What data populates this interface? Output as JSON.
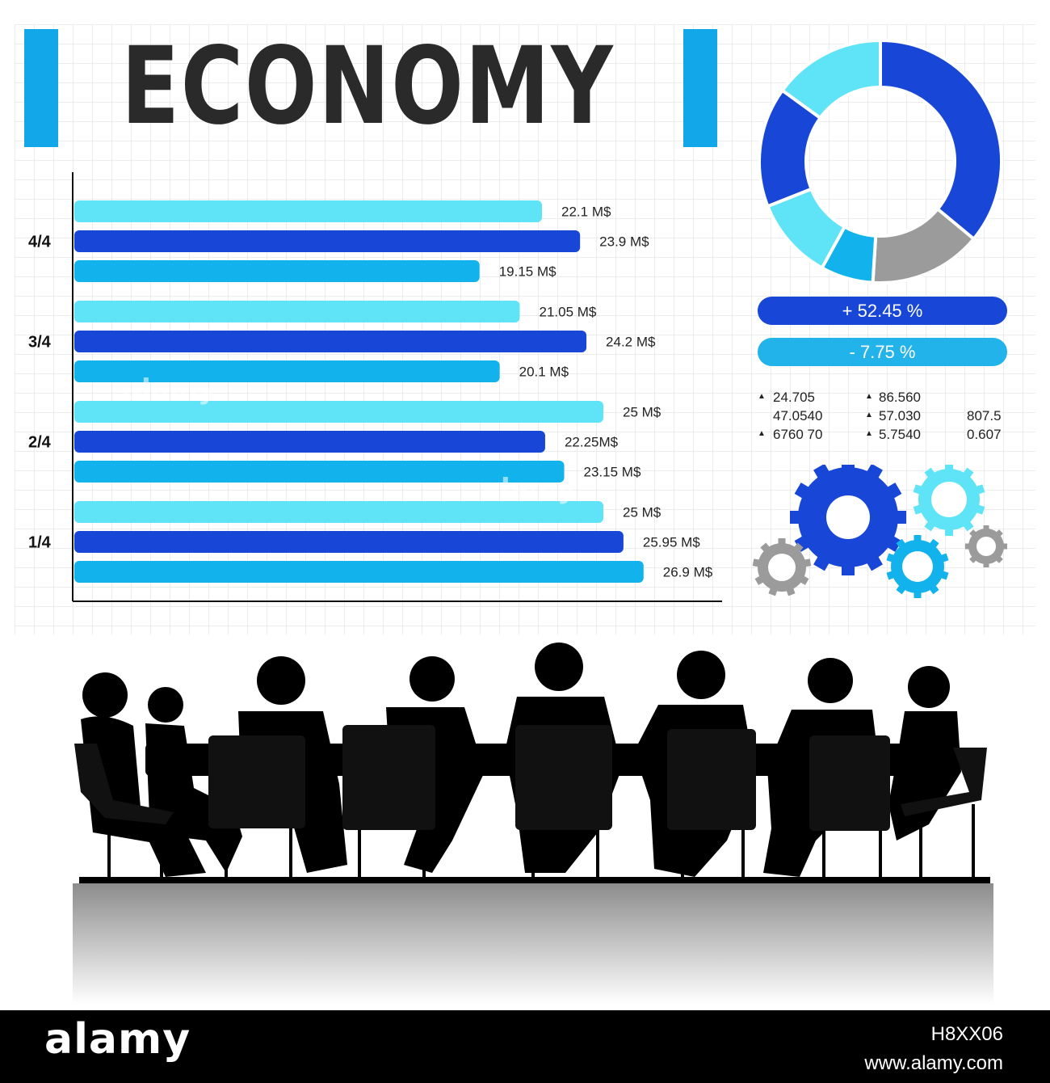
{
  "title": "ECONOMY",
  "colors": {
    "light": "#5fe3f7",
    "dark": "#1846d6",
    "mid": "#12b3ec",
    "gray": "#9b9b9b",
    "accent": "#12a7e8"
  },
  "chart_data": {
    "type": "bar",
    "orientation": "horizontal",
    "categories": [
      "4/4",
      "3/4",
      "2/4",
      "1/4"
    ],
    "unit": "M$",
    "series": [
      {
        "values": [
          22.1,
          21.05,
          25,
          25
        ],
        "labels": [
          "22.1 M$",
          "21.05 M$",
          "25 M$",
          "25 M$"
        ],
        "color": "#5fe3f7"
      },
      {
        "values": [
          23.9,
          24.2,
          22.25,
          25.95
        ],
        "labels": [
          "23.9 M$",
          "24.2 M$",
          "22.25M$",
          "25.95 M$"
        ],
        "color": "#1846d6"
      },
      {
        "values": [
          19.15,
          20.1,
          23.15,
          26.9
        ],
        "labels": [
          "19.15 M$",
          "20.1 M$",
          "23.15 M$",
          "26.9 M$"
        ],
        "color": "#12b3ec"
      }
    ],
    "xlim": [
      0,
      30
    ],
    "grid": true,
    "legend": "none"
  },
  "donut": {
    "segments": [
      {
        "color": "#1846d6",
        "fraction": 0.36
      },
      {
        "color": "#9b9b9b",
        "fraction": 0.15
      },
      {
        "color": "#12b3ec",
        "fraction": 0.07
      },
      {
        "color": "#5fe3f7",
        "fraction": 0.11
      },
      {
        "color": "#1846d6",
        "fraction": 0.16
      },
      {
        "color": "#5fe3f7",
        "fraction": 0.15
      }
    ]
  },
  "stats": {
    "positive": "+ 52.45 %",
    "negative": "- 7.75 %",
    "col1": [
      "24.705",
      "47.0540",
      "6760 70"
    ],
    "col2": [
      "86.560",
      "57.030",
      "5.7540"
    ],
    "col3": [
      "807.5",
      "0.607"
    ]
  },
  "gears": [
    {
      "color": "#1846d6",
      "label": "gear-large"
    },
    {
      "color": "#5fe3f7",
      "label": "gear-light"
    },
    {
      "color": "#12b3ec",
      "label": "gear-mid"
    },
    {
      "color": "#9b9b9b",
      "label": "gear-gray-left"
    },
    {
      "color": "#9b9b9b",
      "label": "gear-gray-right"
    }
  ],
  "footer": {
    "logo": "alamy",
    "image_id": "H8XX06",
    "url": "www.alamy.com"
  },
  "watermarks": [
    "alamy",
    "alamy"
  ]
}
